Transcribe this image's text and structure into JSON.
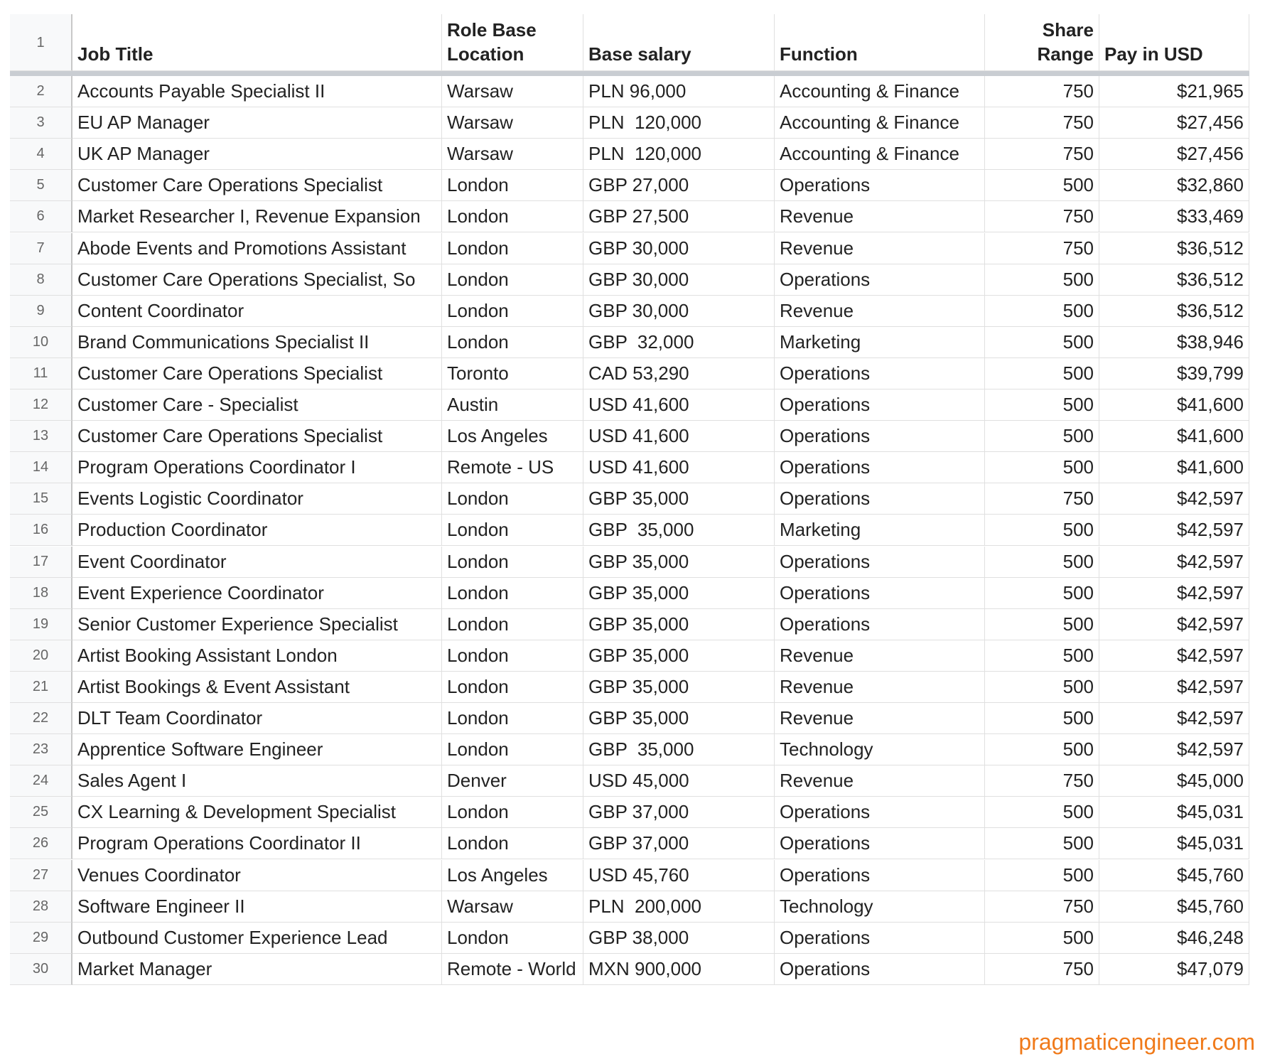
{
  "table": {
    "header": [
      "1",
      "Job Title",
      "Role Base Location",
      "Base salary",
      "Function",
      "Share Range",
      "Pay in USD"
    ],
    "rows": [
      [
        "2",
        "Accounts Payable Specialist II",
        "Warsaw",
        "PLN 96,000",
        "Accounting & Finance",
        "750",
        "$21,965"
      ],
      [
        "3",
        "EU AP Manager",
        "Warsaw",
        "PLN  120,000",
        "Accounting & Finance",
        "750",
        "$27,456"
      ],
      [
        "4",
        "UK AP Manager",
        "Warsaw",
        "PLN  120,000",
        "Accounting & Finance",
        "750",
        "$27,456"
      ],
      [
        "5",
        "Customer Care Operations Specialist",
        "London",
        "GBP 27,000",
        "Operations",
        "500",
        "$32,860"
      ],
      [
        "6",
        "Market Researcher I, Revenue Expansion",
        "London",
        "GBP 27,500",
        "Revenue",
        "750",
        "$33,469"
      ],
      [
        "7",
        "Abode Events and Promotions Assistant",
        "London",
        "GBP 30,000",
        "Revenue",
        "750",
        "$36,512"
      ],
      [
        "8",
        "Customer Care Operations Specialist, So",
        "London",
        "GBP 30,000",
        "Operations",
        "500",
        "$36,512"
      ],
      [
        "9",
        "Content Coordinator",
        "London",
        "GBP 30,000",
        "Revenue",
        "500",
        "$36,512"
      ],
      [
        "10",
        "Brand Communications Specialist II",
        "London",
        "GBP  32,000",
        "Marketing",
        "500",
        "$38,946"
      ],
      [
        "11",
        "Customer Care Operations Specialist",
        "Toronto",
        "CAD 53,290",
        "Operations",
        "500",
        "$39,799"
      ],
      [
        "12",
        "Customer Care - Specialist",
        "Austin",
        "USD 41,600",
        "Operations",
        "500",
        "$41,600"
      ],
      [
        "13",
        "Customer Care Operations Specialist",
        "Los Angeles",
        "USD 41,600",
        "Operations",
        "500",
        "$41,600"
      ],
      [
        "14",
        "Program Operations Coordinator I",
        "Remote - US",
        "USD 41,600",
        "Operations",
        "500",
        "$41,600"
      ],
      [
        "15",
        "Events Logistic Coordinator",
        "London",
        "GBP 35,000",
        "Operations",
        "750",
        "$42,597"
      ],
      [
        "16",
        "Production Coordinator",
        "London",
        "GBP  35,000",
        "Marketing",
        "500",
        "$42,597"
      ],
      [
        "17",
        "Event Coordinator",
        "London",
        "GBP 35,000",
        "Operations",
        "500",
        "$42,597"
      ],
      [
        "18",
        "Event Experience Coordinator",
        "London",
        "GBP 35,000",
        "Operations",
        "500",
        "$42,597"
      ],
      [
        "19",
        "Senior Customer Experience Specialist",
        "London",
        "GBP 35,000",
        "Operations",
        "500",
        "$42,597"
      ],
      [
        "20",
        "Artist Booking Assistant London",
        "London",
        "GBP 35,000",
        "Revenue",
        "500",
        "$42,597"
      ],
      [
        "21",
        "Artist Bookings & Event Assistant",
        "London",
        "GBP 35,000",
        "Revenue",
        "500",
        "$42,597"
      ],
      [
        "22",
        "DLT Team Coordinator",
        "London",
        "GBP 35,000",
        "Revenue",
        "500",
        "$42,597"
      ],
      [
        "23",
        "Apprentice Software Engineer",
        "London",
        "GBP  35,000",
        "Technology",
        "500",
        "$42,597"
      ],
      [
        "24",
        "Sales Agent I",
        "Denver",
        "USD 45,000",
        "Revenue",
        "750",
        "$45,000"
      ],
      [
        "25",
        "CX Learning & Development Specialist",
        "London",
        "GBP 37,000",
        "Operations",
        "500",
        "$45,031"
      ],
      [
        "26",
        "Program Operations Coordinator II",
        "London",
        "GBP 37,000",
        "Operations",
        "500",
        "$45,031"
      ],
      [
        "27",
        "Venues Coordinator",
        "Los Angeles",
        "USD 45,760",
        "Operations",
        "500",
        "$45,760"
      ],
      [
        "28",
        "Software Engineer II",
        "Warsaw",
        "PLN  200,000",
        "Technology",
        "750",
        "$45,760"
      ],
      [
        "29",
        "Outbound Customer Experience Lead",
        "London",
        "GBP 38,000",
        "Operations",
        "500",
        "$46,248"
      ],
      [
        "30",
        "Market Manager",
        "Remote - World",
        "MXN 900,000",
        "Operations",
        "750",
        "$47,079"
      ]
    ]
  },
  "footer": {
    "watermark": "pragmaticengineer.com"
  }
}
